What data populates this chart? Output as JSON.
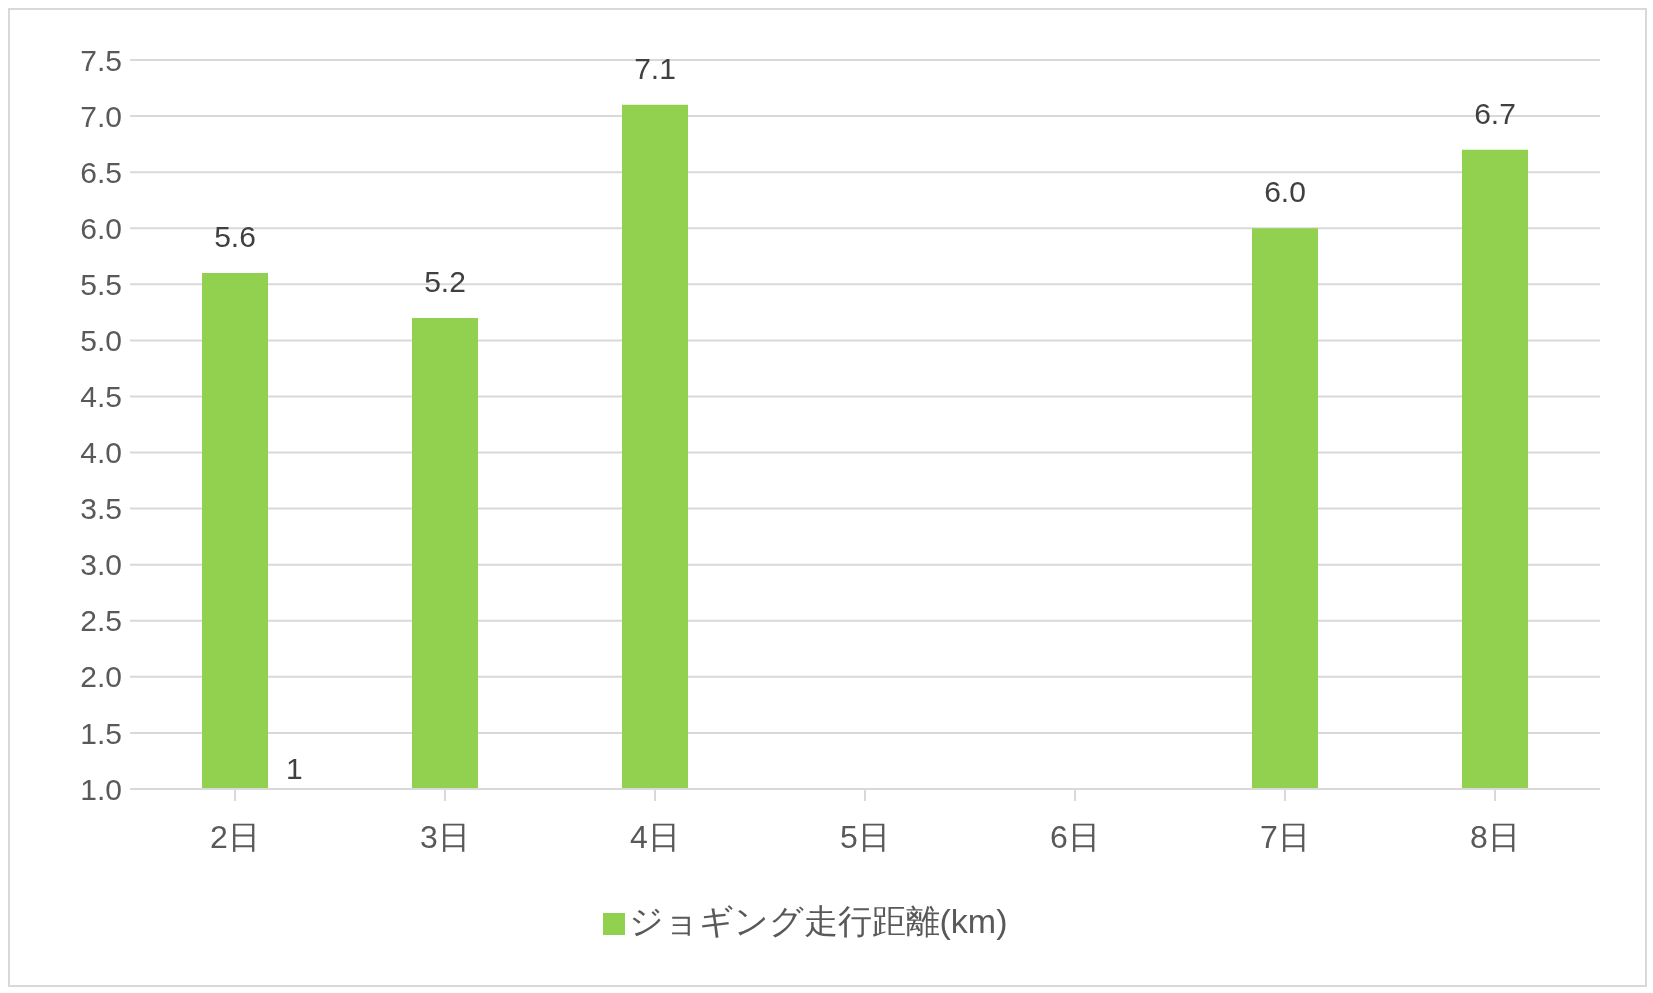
{
  "chart_data": {
    "type": "bar",
    "categories": [
      "2日",
      "3日",
      "4日",
      "5日",
      "6日",
      "7日",
      "8日"
    ],
    "series": [
      {
        "name": "ジョギング走行距離(km)",
        "color": "#92d050",
        "values": [
          5.6,
          5.2,
          7.1,
          null,
          null,
          6.0,
          6.7
        ],
        "value_labels": [
          "5.6",
          "5.2",
          "7.1",
          null,
          null,
          "6.0",
          "6.7"
        ]
      }
    ],
    "ylim": [
      1.0,
      7.5
    ],
    "yticks": [
      {
        "value": 1,
        "label": "1.0"
      },
      {
        "value": 1.5,
        "label": "1.5"
      },
      {
        "value": 2,
        "label": "2.0"
      },
      {
        "value": 2.5,
        "label": "2.5"
      },
      {
        "value": 3,
        "label": "3.0"
      },
      {
        "value": 3.5,
        "label": "3.5"
      },
      {
        "value": 4,
        "label": "4.0"
      },
      {
        "value": 4.5,
        "label": "4.5"
      },
      {
        "value": 5,
        "label": "5.0"
      },
      {
        "value": 5.5,
        "label": "5.5"
      },
      {
        "value": 6,
        "label": "6.0"
      },
      {
        "value": 6.5,
        "label": "6.5"
      },
      {
        "value": 7,
        "label": "7.0"
      },
      {
        "value": 7.5,
        "label": "7.5"
      }
    ],
    "grid": "y",
    "legend": "bottom",
    "annotations": [
      "1"
    ]
  }
}
